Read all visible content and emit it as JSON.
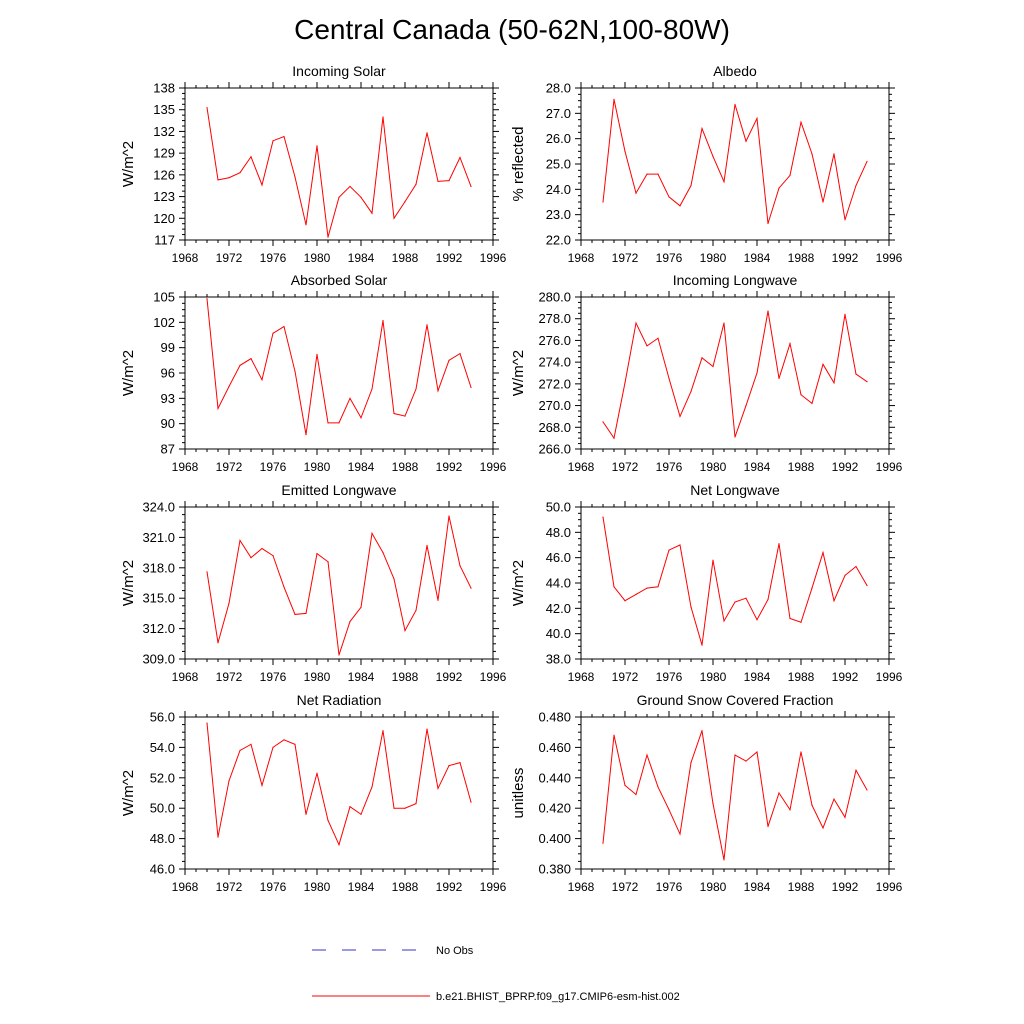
{
  "figure": {
    "title": "Central Canada (50-62N,100-80W)"
  },
  "legend": {
    "obs_label": "No Obs",
    "model_label": "b.e21.BHIST_BPRP.f09_g17.CMIP6-esm-hist.002",
    "obs_color": "#3333cc",
    "model_color": "#ff0000"
  },
  "chart_data": [
    {
      "type": "line",
      "title": "Incoming Solar",
      "xlabel": "",
      "ylabel": "W/m^2",
      "xlim": [
        1968,
        1996
      ],
      "ylim": [
        117,
        138
      ],
      "xticks": [
        "1968",
        "1972",
        "1976",
        "1980",
        "1984",
        "1988",
        "1992",
        "1996"
      ],
      "yticks": [
        "117",
        "120",
        "123",
        "126",
        "129",
        "132",
        "135",
        "138"
      ],
      "x": [
        1970,
        1971,
        1972,
        1973,
        1974,
        1975,
        1976,
        1977,
        1978,
        1979,
        1980,
        1981,
        1982,
        1983,
        1984,
        1985,
        1986,
        1987,
        1988,
        1989,
        1990,
        1991,
        1992,
        1993,
        1994
      ],
      "series": [
        {
          "name": "b.e21.BHIST_BPRP.f09_g17.CMIP6-esm-hist.002",
          "values": [
            135.3,
            125.3,
            125.6,
            126.3,
            128.5,
            124.6,
            130.7,
            131.3,
            125.7,
            119.1,
            130.0,
            117.4,
            122.9,
            124.4,
            122.9,
            120.7,
            134.0,
            120.0,
            122.3,
            124.7,
            131.8,
            125.1,
            125.2,
            128.4,
            124.4
          ]
        }
      ]
    },
    {
      "type": "line",
      "title": "Albedo",
      "xlabel": "",
      "ylabel": "% reflected",
      "xlim": [
        1968,
        1996
      ],
      "ylim": [
        22,
        28
      ],
      "xticks": [
        "1968",
        "1972",
        "1976",
        "1980",
        "1984",
        "1988",
        "1992",
        "1996"
      ],
      "yticks": [
        "22.0",
        "23.0",
        "24.0",
        "25.0",
        "26.0",
        "27.0",
        "28.0"
      ],
      "x": [
        1970,
        1971,
        1972,
        1973,
        1974,
        1975,
        1976,
        1977,
        1978,
        1979,
        1980,
        1981,
        1982,
        1983,
        1984,
        1985,
        1986,
        1987,
        1988,
        1989,
        1990,
        1991,
        1992,
        1993,
        1994
      ],
      "series": [
        {
          "name": "b.e21.BHIST_BPRP.f09_g17.CMIP6-esm-hist.002",
          "values": [
            23.5,
            27.55,
            25.5,
            23.85,
            24.6,
            24.6,
            23.7,
            23.35,
            24.15,
            26.4,
            25.3,
            24.3,
            27.35,
            25.9,
            26.8,
            22.65,
            24.05,
            24.55,
            26.65,
            25.4,
            23.5,
            25.4,
            22.8,
            24.15,
            25.1
          ]
        }
      ]
    },
    {
      "type": "line",
      "title": "Absorbed Solar",
      "xlabel": "",
      "ylabel": "W/m^2",
      "xlim": [
        1968,
        1996
      ],
      "ylim": [
        87,
        105
      ],
      "xticks": [
        "1968",
        "1972",
        "1976",
        "1980",
        "1984",
        "1988",
        "1992",
        "1996"
      ],
      "yticks": [
        "87",
        "90",
        "93",
        "96",
        "99",
        "102",
        "105"
      ],
      "x": [
        1970,
        1971,
        1972,
        1973,
        1974,
        1975,
        1976,
        1977,
        1978,
        1979,
        1980,
        1981,
        1982,
        1983,
        1984,
        1985,
        1986,
        1987,
        1988,
        1989,
        1990,
        1991,
        1992,
        1993,
        1994
      ],
      "series": [
        {
          "name": "b.e21.BHIST_BPRP.f09_g17.CMIP6-esm-hist.002",
          "values": [
            104.8,
            91.8,
            94.4,
            96.9,
            97.7,
            95.2,
            100.7,
            101.5,
            96.2,
            88.7,
            98.2,
            90.1,
            90.1,
            93.0,
            90.7,
            94.1,
            102.2,
            91.2,
            90.9,
            94.1,
            101.7,
            93.9,
            97.5,
            98.3,
            94.3
          ]
        }
      ]
    },
    {
      "type": "line",
      "title": "Incoming Longwave",
      "xlabel": "",
      "ylabel": "W/m^2",
      "xlim": [
        1968,
        1996
      ],
      "ylim": [
        266,
        280
      ],
      "xticks": [
        "1968",
        "1972",
        "1976",
        "1980",
        "1984",
        "1988",
        "1992",
        "1996"
      ],
      "yticks": [
        "266.0",
        "268.0",
        "270.0",
        "272.0",
        "274.0",
        "276.0",
        "278.0",
        "280.0"
      ],
      "x": [
        1970,
        1971,
        1972,
        1973,
        1974,
        1975,
        1976,
        1977,
        1978,
        1979,
        1980,
        1981,
        1982,
        1983,
        1984,
        1985,
        1986,
        1987,
        1988,
        1989,
        1990,
        1991,
        1992,
        1993,
        1994
      ],
      "series": [
        {
          "name": "b.e21.BHIST_BPRP.f09_g17.CMIP6-esm-hist.002",
          "values": [
            268.5,
            267.0,
            272.1,
            277.6,
            275.5,
            276.2,
            272.5,
            269.0,
            271.3,
            274.4,
            273.6,
            277.6,
            267.1,
            270.0,
            273.0,
            278.7,
            272.5,
            275.7,
            271.0,
            270.2,
            273.8,
            272.1,
            278.4,
            272.9,
            272.2
          ]
        }
      ]
    },
    {
      "type": "line",
      "title": "Emitted Longwave",
      "xlabel": "",
      "ylabel": "W/m^2",
      "xlim": [
        1968,
        1996
      ],
      "ylim": [
        309,
        324
      ],
      "xticks": [
        "1968",
        "1972",
        "1976",
        "1980",
        "1984",
        "1988",
        "1992",
        "1996"
      ],
      "yticks": [
        "309.0",
        "312.0",
        "315.0",
        "318.0",
        "321.0",
        "324.0"
      ],
      "x": [
        1970,
        1971,
        1972,
        1973,
        1974,
        1975,
        1976,
        1977,
        1978,
        1979,
        1980,
        1981,
        1982,
        1983,
        1984,
        1985,
        1986,
        1987,
        1988,
        1989,
        1990,
        1991,
        1992,
        1993,
        1994
      ],
      "series": [
        {
          "name": "b.e21.BHIST_BPRP.f09_g17.CMIP6-esm-hist.002",
          "values": [
            317.6,
            310.6,
            314.5,
            320.7,
            319.0,
            319.9,
            319.2,
            316.1,
            313.4,
            313.5,
            319.4,
            318.6,
            309.4,
            312.7,
            314.1,
            321.4,
            319.5,
            316.9,
            311.8,
            313.8,
            320.2,
            314.8,
            323.1,
            318.2,
            316.0
          ]
        }
      ]
    },
    {
      "type": "line",
      "title": "Net Longwave",
      "xlabel": "",
      "ylabel": "W/m^2",
      "xlim": [
        1968,
        1996
      ],
      "ylim": [
        38,
        50
      ],
      "xticks": [
        "1968",
        "1972",
        "1976",
        "1980",
        "1984",
        "1988",
        "1992",
        "1996"
      ],
      "yticks": [
        "38.0",
        "40.0",
        "42.0",
        "44.0",
        "46.0",
        "48.0",
        "50.0"
      ],
      "x": [
        1970,
        1971,
        1972,
        1973,
        1974,
        1975,
        1976,
        1977,
        1978,
        1979,
        1980,
        1981,
        1982,
        1983,
        1984,
        1985,
        1986,
        1987,
        1988,
        1989,
        1990,
        1991,
        1992,
        1993,
        1994
      ],
      "series": [
        {
          "name": "b.e21.BHIST_BPRP.f09_g17.CMIP6-esm-hist.002",
          "values": [
            49.2,
            43.7,
            42.6,
            43.1,
            43.6,
            43.7,
            46.6,
            47.0,
            42.1,
            39.1,
            45.8,
            41.0,
            42.5,
            42.8,
            41.1,
            42.7,
            47.1,
            41.2,
            40.9,
            43.6,
            46.4,
            42.6,
            44.6,
            45.3,
            43.8
          ]
        }
      ]
    },
    {
      "type": "line",
      "title": "Net Radiation",
      "xlabel": "",
      "ylabel": "W/m^2",
      "xlim": [
        1968,
        1996
      ],
      "ylim": [
        46,
        56
      ],
      "xticks": [
        "1968",
        "1972",
        "1976",
        "1980",
        "1984",
        "1988",
        "1992",
        "1996"
      ],
      "yticks": [
        "46.0",
        "48.0",
        "50.0",
        "52.0",
        "54.0",
        "56.0"
      ],
      "x": [
        1970,
        1971,
        1972,
        1973,
        1974,
        1975,
        1976,
        1977,
        1978,
        1979,
        1980,
        1981,
        1982,
        1983,
        1984,
        1985,
        1986,
        1987,
        1988,
        1989,
        1990,
        1991,
        1992,
        1993,
        1994
      ],
      "series": [
        {
          "name": "b.e21.BHIST_BPRP.f09_g17.CMIP6-esm-hist.002",
          "values": [
            55.6,
            48.1,
            51.8,
            53.8,
            54.2,
            51.5,
            54.0,
            54.5,
            54.2,
            49.6,
            52.3,
            49.2,
            47.6,
            50.1,
            49.6,
            51.4,
            55.1,
            50.0,
            50.0,
            50.3,
            55.2,
            51.3,
            52.8,
            53.0,
            50.4
          ]
        }
      ]
    },
    {
      "type": "line",
      "title": "Ground Snow Covered Fraction",
      "xlabel": "",
      "ylabel": "unitless",
      "xlim": [
        1968,
        1996
      ],
      "ylim": [
        0.38,
        0.48
      ],
      "xticks": [
        "1968",
        "1972",
        "1976",
        "1980",
        "1984",
        "1988",
        "1992",
        "1996"
      ],
      "yticks": [
        "0.380",
        "0.400",
        "0.420",
        "0.440",
        "0.460",
        "0.480"
      ],
      "x": [
        1970,
        1971,
        1972,
        1973,
        1974,
        1975,
        1976,
        1977,
        1978,
        1979,
        1980,
        1981,
        1982,
        1983,
        1984,
        1985,
        1986,
        1987,
        1988,
        1989,
        1990,
        1991,
        1992,
        1993,
        1994
      ],
      "series": [
        {
          "name": "b.e21.BHIST_BPRP.f09_g17.CMIP6-esm-hist.002",
          "values": [
            0.397,
            0.468,
            0.435,
            0.429,
            0.455,
            0.434,
            0.419,
            0.403,
            0.45,
            0.471,
            0.423,
            0.386,
            0.455,
            0.451,
            0.457,
            0.408,
            0.43,
            0.419,
            0.457,
            0.422,
            0.407,
            0.426,
            0.414,
            0.445,
            0.432
          ]
        }
      ]
    }
  ]
}
